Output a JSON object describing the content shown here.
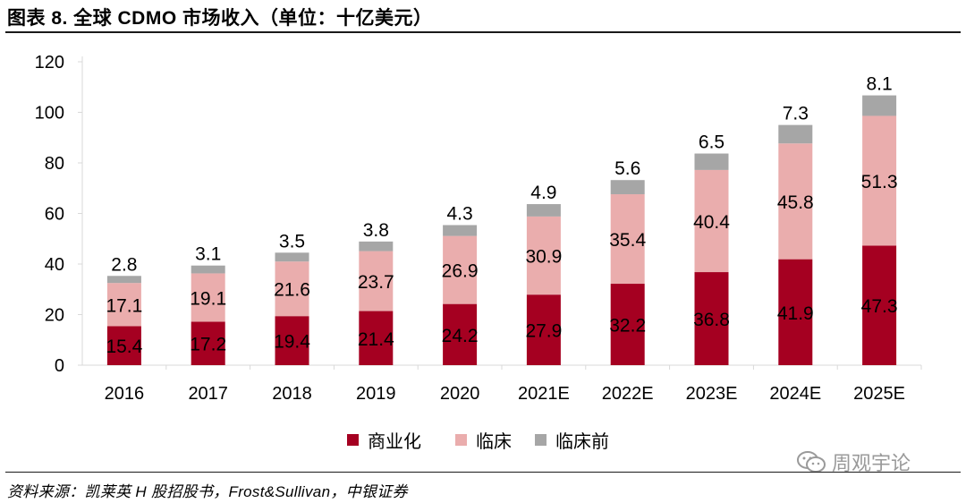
{
  "title": "图表 8. 全球 CDMO 市场收入（单位：十亿美元）",
  "source": "资料来源：凯莱英 H 股招股书，Frost&Sullivan，中银证券",
  "watermark": {
    "text": "周观宇论",
    "icon": "wechat-icon"
  },
  "colors": {
    "commercial": "#a50021",
    "clinical": "#eaadad",
    "preclinical": "#a6a6a6",
    "axis": "#d9d9d9"
  },
  "chart_data": {
    "type": "bar",
    "stacked": true,
    "title": "全球 CDMO 市场收入（单位：十亿美元）",
    "xlabel": "",
    "ylabel": "",
    "ylim": [
      0,
      120
    ],
    "yticks": [
      0,
      20,
      40,
      60,
      80,
      100,
      120
    ],
    "grid": false,
    "legend_position": "bottom",
    "categories": [
      "2016",
      "2017",
      "2018",
      "2019",
      "2020",
      "2021E",
      "2022E",
      "2023E",
      "2024E",
      "2025E"
    ],
    "series": [
      {
        "name": "商业化",
        "values": [
          15.4,
          17.2,
          19.4,
          21.4,
          24.2,
          27.9,
          32.2,
          36.8,
          41.9,
          47.3
        ]
      },
      {
        "name": "临床",
        "values": [
          17.1,
          19.1,
          21.6,
          23.7,
          26.9,
          30.9,
          35.4,
          40.4,
          45.8,
          51.3
        ]
      },
      {
        "name": "临床前",
        "values": [
          2.8,
          3.1,
          3.5,
          3.8,
          4.3,
          4.9,
          5.6,
          6.5,
          7.3,
          8.1
        ]
      }
    ]
  }
}
